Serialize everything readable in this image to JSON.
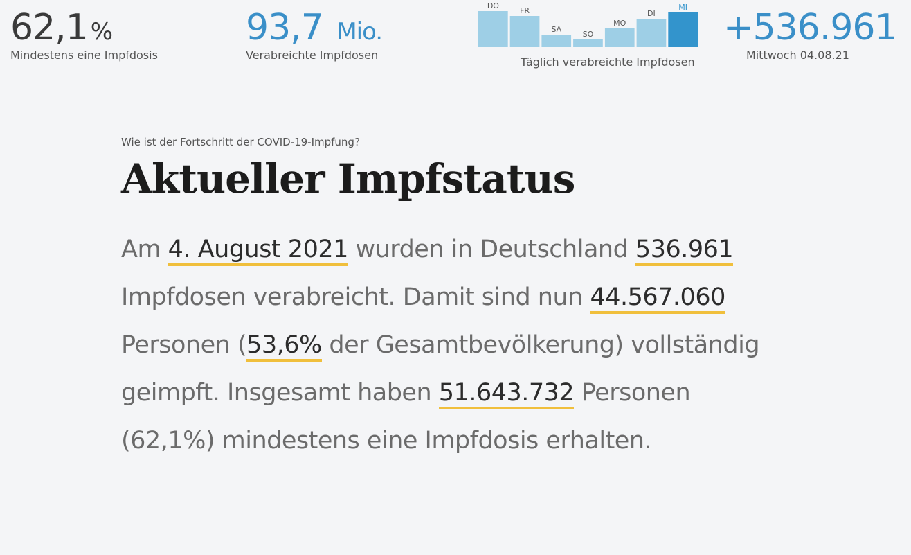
{
  "stats": {
    "first_dose": {
      "value": "62,1",
      "unit": "%",
      "label": "Mindestens eine Impfdosis"
    },
    "total_doses": {
      "value": "93,7",
      "unit": "Mio.",
      "label": "Verabreichte Impfdosen"
    },
    "today": {
      "value": "+536.961",
      "label": "Mittwoch 04.08.21"
    }
  },
  "daily_chart": {
    "caption": "Täglich verabreichte Impfdosen",
    "colors": {
      "past": "#9ecfe6",
      "current": "#3394cc",
      "label": "#555555",
      "current_label": "#3394cc"
    }
  },
  "chart_data": {
    "type": "bar",
    "categories": [
      "DO",
      "FR",
      "SA",
      "SO",
      "MO",
      "DI",
      "MI"
    ],
    "values": [
      52,
      45,
      18,
      11,
      27,
      41,
      50
    ],
    "highlight": "MI",
    "title": "",
    "xlabel": "",
    "ylabel": ""
  },
  "article": {
    "question": "Wie ist der Fortschritt der COVID-19-Impfung?",
    "headline": "Aktueller Impfstatus",
    "t1": "Am ",
    "date": "4. August 2021",
    "t2": " wurden in Deutschland ",
    "doses_today": "536.961",
    "t3": " Impfdosen verabreicht. Damit sind nun ",
    "fully_vaccinated": "44.567.060",
    "t4": " Personen (",
    "fully_pct": "53,6%",
    "t5": " der Gesamtbevölkerung) vollständig geimpft. Insgesamt haben ",
    "first_dose_count": "51.643.732",
    "t6": " Personen (62,1%) mindestens eine Impfdosis erhalten."
  }
}
